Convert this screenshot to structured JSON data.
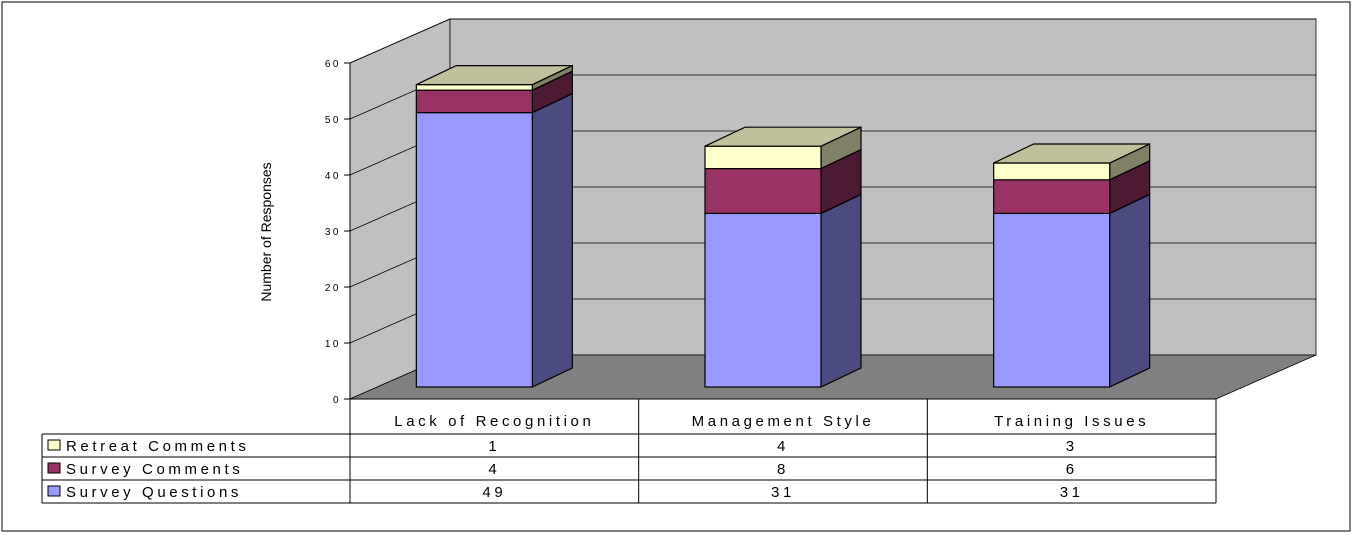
{
  "chart_data": {
    "type": "bar",
    "stacked": true,
    "three_d": true,
    "title": "",
    "xlabel": "",
    "ylabel": "Number of Responses",
    "ylim": [
      0,
      60
    ],
    "yticks": [
      "0",
      "10",
      "20",
      "30",
      "40",
      "50",
      "60"
    ],
    "grid": true,
    "legend": "data-table-left",
    "categories": [
      "Lack of Recognition",
      "Management Style",
      "Training Issues"
    ],
    "series": [
      {
        "name": "Survey Questions",
        "values": [
          49,
          31,
          31
        ],
        "color": "#9999FF",
        "side_color": "#4B4B80"
      },
      {
        "name": "Survey Comments",
        "values": [
          4,
          8,
          6
        ],
        "color": "#993366",
        "side_color": "#4D1A33"
      },
      {
        "name": "Retreat Comments",
        "values": [
          1,
          4,
          3
        ],
        "color": "#FFFFCC",
        "top_color": "#C0C09A",
        "side_color": "#808066"
      }
    ],
    "table_rows": [
      {
        "name": "Retreat Comments",
        "values": [
          "1",
          "4",
          "3"
        ],
        "color": "#FFFFCC"
      },
      {
        "name": "Survey Comments",
        "values": [
          "4",
          "8",
          "6"
        ],
        "color": "#993366"
      },
      {
        "name": "Survey Questions",
        "values": [
          "49",
          "31",
          "31"
        ],
        "color": "#9999FF"
      }
    ],
    "wall_color": "#C0C0C0",
    "floor_color": "#808080"
  }
}
